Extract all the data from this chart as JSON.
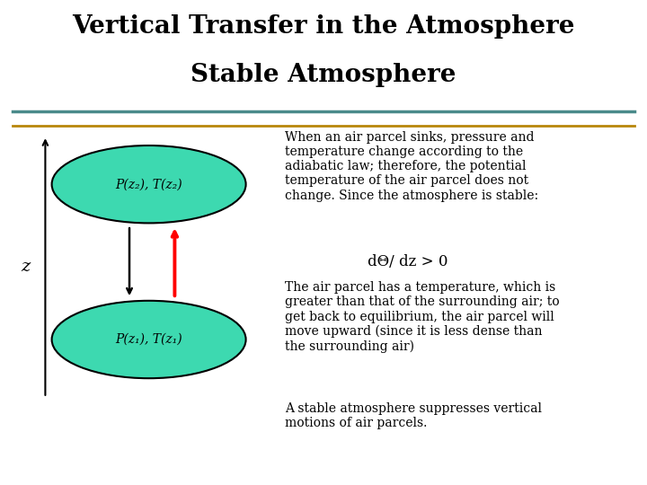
{
  "title_line1": "Vertical Transfer in the Atmosphere",
  "title_line2": "Stable Atmosphere",
  "title_fontsize": 20,
  "bg_color": "#ffffff",
  "ellipse_color": "#3dd9b0",
  "ellipse_edge_color": "#000000",
  "upper_ellipse_label": "P(z₂), T(z₂)",
  "lower_ellipse_label": "P(z₁), T(z₁)",
  "ellipse_label_fontsize": 10,
  "z_label": "z",
  "text1_body": "When an air parcel sinks, pressure and\ntemperature change according to the\nadiabatic law; therefore, the potential\ntemperature of the air parcel does not\nchange. Since the atmosphere is stable:",
  "text1_math": "dΘ/ dz > 0",
  "text2_body": "The air parcel has a temperature, which is\ngreater than that of the surrounding air; to\nget back to equilibrium, the air parcel will\nmove upward (since it is less dense than\nthe surrounding air)",
  "text3_body": "A stable atmosphere suppresses vertical\nmotions of air parcels.",
  "text_fontsize": 10,
  "math_fontsize": 12,
  "sep_line1_color": "#4a8a8a",
  "sep_line2_color": "#b8860b"
}
